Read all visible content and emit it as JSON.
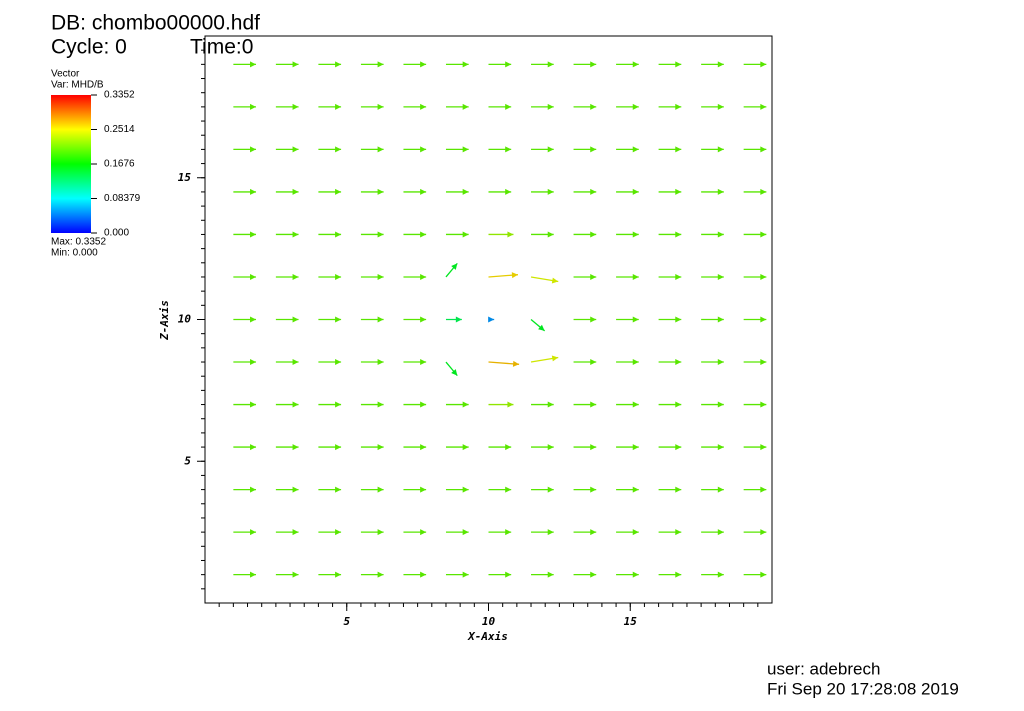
{
  "chart_data": {
    "type": "vector",
    "title": "DB: chombo00000.hdf",
    "cycle_label": "Cycle: 0",
    "time_label": "Time:0",
    "legend_title": "Vector",
    "legend_var": "Var: MHD/B",
    "legend_max": "Max:  0.3352",
    "legend_min": "Min:  0.000",
    "colorbar": {
      "lim": [
        0,
        0.3352
      ],
      "ticks": [
        {
          "value": 0,
          "label": "0.000"
        },
        0.08379,
        0.1676,
        0.2514,
        0.3352
      ]
    },
    "xlabel": "X-Axis",
    "ylabel": "Z-Axis",
    "xlim": [
      0,
      20
    ],
    "ylim": [
      0,
      20
    ],
    "xticks": [
      5,
      10,
      15
    ],
    "yticks": [
      5,
      10,
      15
    ],
    "x": [
      1,
      2.5,
      4,
      5.5,
      7,
      8.5,
      10,
      11.5,
      13,
      14.5,
      16,
      17.5,
      19
    ],
    "z": [
      1,
      2.5,
      4,
      5.5,
      7,
      8.5,
      10,
      11.5,
      13,
      14.5,
      16,
      17.5,
      19
    ],
    "u": [
      [
        0.2,
        0.2,
        0.2,
        0.2,
        0.2,
        0.2,
        0.2,
        0.2,
        0.2,
        0.2,
        0.2,
        0.2,
        0.2
      ],
      [
        0.2,
        0.2,
        0.2,
        0.2,
        0.2,
        0.2,
        0.2,
        0.2,
        0.2,
        0.2,
        0.2,
        0.2,
        0.2
      ],
      [
        0.2,
        0.2,
        0.2,
        0.2,
        0.2,
        0.2,
        0.2,
        0.2,
        0.2,
        0.2,
        0.2,
        0.2,
        0.2
      ],
      [
        0.2,
        0.2,
        0.2,
        0.2,
        0.2,
        0.2,
        0.2,
        0.2,
        0.2,
        0.2,
        0.2,
        0.2,
        0.2
      ],
      [
        0.2,
        0.2,
        0.2,
        0.2,
        0.2,
        0.2,
        0.22,
        0.2,
        0.2,
        0.2,
        0.2,
        0.2,
        0.2
      ],
      [
        0.2,
        0.2,
        0.2,
        0.2,
        0.2,
        0.1,
        0.27,
        0.24,
        0.2,
        0.2,
        0.2,
        0.2,
        0.2
      ],
      [
        0.2,
        0.2,
        0.2,
        0.2,
        0.2,
        0.14,
        0.05,
        0.12,
        0.2,
        0.2,
        0.2,
        0.2,
        0.2
      ],
      [
        0.2,
        0.2,
        0.2,
        0.2,
        0.2,
        0.1,
        0.26,
        0.24,
        0.2,
        0.2,
        0.2,
        0.2,
        0.2
      ],
      [
        0.2,
        0.2,
        0.2,
        0.2,
        0.2,
        0.2,
        0.22,
        0.2,
        0.2,
        0.2,
        0.2,
        0.2,
        0.2
      ],
      [
        0.2,
        0.2,
        0.2,
        0.2,
        0.2,
        0.2,
        0.2,
        0.2,
        0.2,
        0.2,
        0.2,
        0.2,
        0.2
      ],
      [
        0.2,
        0.2,
        0.2,
        0.2,
        0.2,
        0.2,
        0.2,
        0.2,
        0.2,
        0.2,
        0.2,
        0.2,
        0.2
      ],
      [
        0.2,
        0.2,
        0.2,
        0.2,
        0.2,
        0.2,
        0.2,
        0.2,
        0.2,
        0.2,
        0.2,
        0.2,
        0.2
      ],
      [
        0.2,
        0.2,
        0.2,
        0.2,
        0.2,
        0.2,
        0.2,
        0.2,
        0.2,
        0.2,
        0.2,
        0.2,
        0.2
      ]
    ],
    "w": [
      [
        0,
        0,
        0,
        0,
        0,
        0,
        0,
        0,
        0,
        0,
        0,
        0,
        0
      ],
      [
        0,
        0,
        0,
        0,
        0,
        0,
        0,
        0,
        0,
        0,
        0,
        0,
        0
      ],
      [
        0,
        0,
        0,
        0,
        0,
        0,
        0,
        0,
        0,
        0,
        0,
        0,
        0
      ],
      [
        0,
        0,
        0,
        0,
        0,
        0,
        0,
        0,
        0,
        0,
        0,
        0,
        0
      ],
      [
        0,
        0,
        0,
        0,
        0,
        0,
        0,
        0,
        0,
        0,
        0,
        0,
        0
      ],
      [
        0,
        0,
        0,
        0,
        0,
        -0.12,
        -0.02,
        0.04,
        0,
        0,
        0,
        0,
        0
      ],
      [
        0,
        0,
        0,
        0,
        0,
        0,
        0,
        -0.1,
        0,
        0,
        0,
        0,
        0
      ],
      [
        0,
        0,
        0,
        0,
        0,
        0.12,
        0.02,
        -0.04,
        0,
        0,
        0,
        0,
        0
      ],
      [
        0,
        0,
        0,
        0,
        0,
        0,
        0,
        0,
        0,
        0,
        0,
        0,
        0
      ],
      [
        0,
        0,
        0,
        0,
        0,
        0,
        0,
        0,
        0,
        0,
        0,
        0,
        0
      ],
      [
        0,
        0,
        0,
        0,
        0,
        0,
        0,
        0,
        0,
        0,
        0,
        0,
        0
      ],
      [
        0,
        0,
        0,
        0,
        0,
        0,
        0,
        0,
        0,
        0,
        0,
        0,
        0
      ],
      [
        0,
        0,
        0,
        0,
        0,
        0,
        0,
        0,
        0,
        0,
        0,
        0,
        0
      ]
    ],
    "user_label": "user: adebrech",
    "date_label": "Fri Sep 20 17:28:08 2019"
  }
}
